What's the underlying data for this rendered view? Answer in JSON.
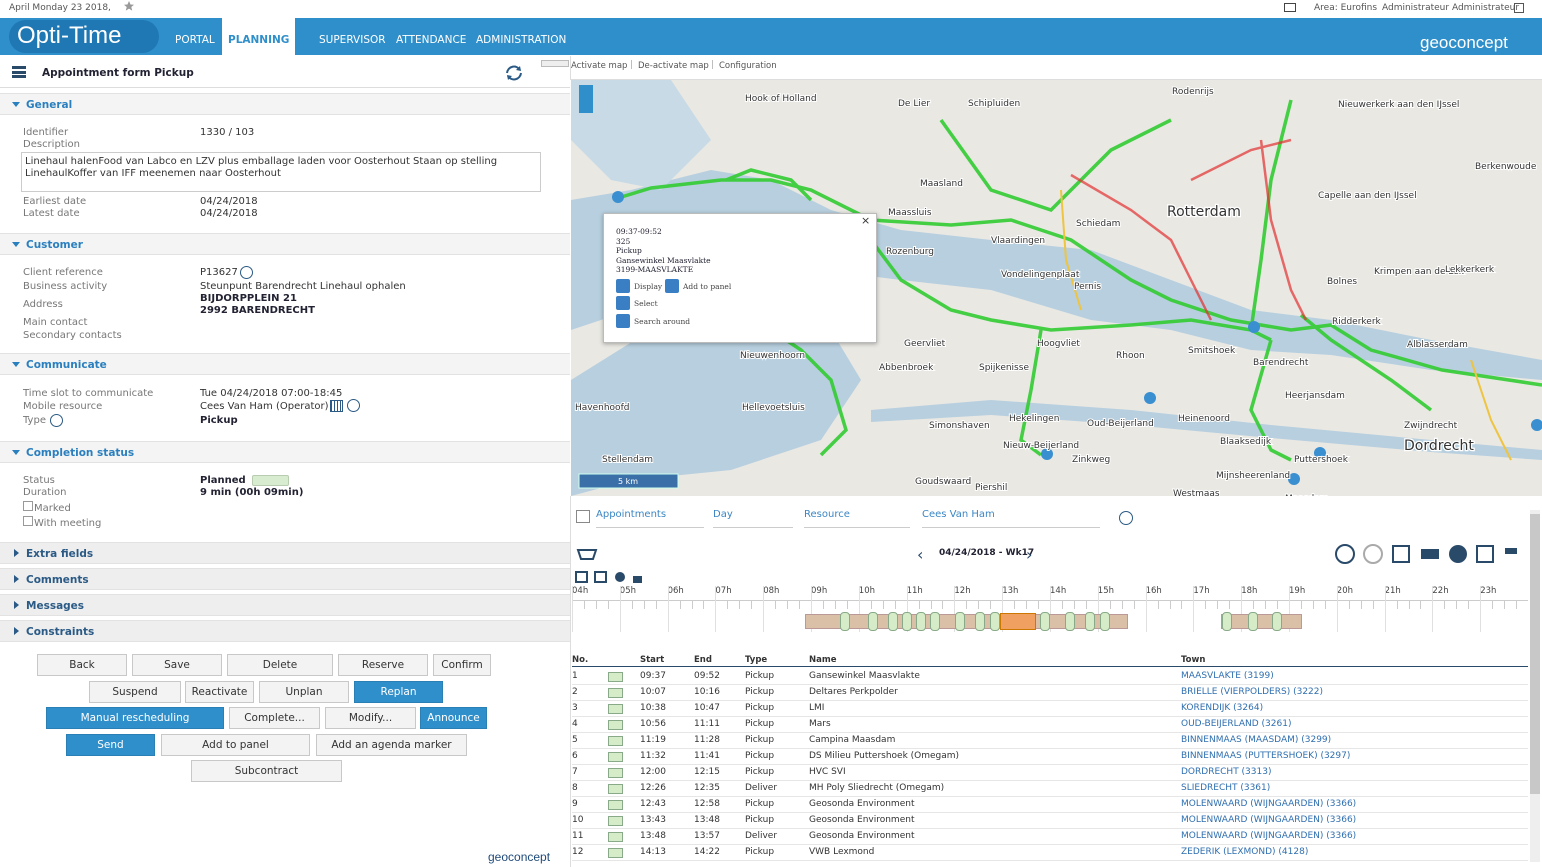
{
  "topbar": {
    "date": "April Monday 23 2018,",
    "area": "Area: Eurofins",
    "user": "Administrateur Administrateur"
  },
  "nav": {
    "logo": "Opti-Time",
    "tabs": [
      "PORTAL",
      "PLANNING",
      "SUPERVISOR",
      "ATTENDANCE",
      "ADMINISTRATION"
    ],
    "active_tab": 1,
    "brand": "geoconcept"
  },
  "form": {
    "title": "Appointment form  Pickup",
    "sections": [
      "General",
      "Customer",
      "Communicate",
      "Completion status",
      "Extra fields",
      "Comments",
      "Messages",
      "Constraints"
    ],
    "general": {
      "identifier_label": "Identifier",
      "identifier": "1330 / 103",
      "description_label": "Description",
      "description": "Linehaul halenFood van Labco en LZV plus emballage laden voor Oosterhout Staan op stelling\nLinehaulKoffer van IFF meenemen naar Oosterhout",
      "earliest_label": "Earliest date",
      "earliest": "04/24/2018",
      "latest_label": "Latest date",
      "latest": "04/24/2018"
    },
    "customer": {
      "client_ref_label": "Client reference",
      "client_ref": "P13627",
      "activity_label": "Business activity",
      "activity": "Steunpunt Barendrecht Linehaul ophalen",
      "address_label": "Address",
      "address_lines": [
        "BIJDORPPLEIN 21",
        "2992 BARENDRECHT"
      ],
      "main_contact_label": "Main contact",
      "secondary_label": "Secondary contacts"
    },
    "communicate": {
      "timeslot_label": "Time slot to communicate",
      "timeslot": "Tue 04/24/2018 07:00-18:45",
      "resource_label": "Mobile resource",
      "resource": "Cees Van Ham (Operator)",
      "type_label": "Type",
      "type": "Pickup"
    },
    "completion": {
      "status_label": "Status",
      "status": "Planned",
      "duration_label": "Duration",
      "duration": "9 min (00h 09min)",
      "marked": "Marked",
      "with_meeting": "With meeting"
    },
    "buttons": [
      [
        "Back",
        "Save",
        "Delete",
        "Reserve",
        "Confirm"
      ],
      [
        "Suspend",
        "Reactivate",
        "Unplan",
        "Replan"
      ],
      [
        "Manual rescheduling",
        "Complete...",
        "Modify...",
        "Announce"
      ],
      [
        "Send",
        "Add to panel",
        "Add an agenda marker"
      ],
      [
        "Subcontract"
      ]
    ],
    "footer": "geoconcept"
  },
  "map": {
    "links": [
      "Activate map",
      "De-activate map",
      "Configuration"
    ],
    "labels": [
      "Hook of Holland",
      "De Lier",
      "Schipluiden",
      "Rodenrijs",
      "Nieuwerkerk aan den IJssel",
      "Berkenwoude",
      "Maassluis",
      "Maasland",
      "Schiedam",
      "Rotterdam",
      "Vlaardingen",
      "Capelle aan den IJssel",
      "Rozenburg",
      "Vondelingenplaat",
      "Pernis",
      "Bolnes",
      "Krimpen aan de Lek",
      "Lekkerkerk",
      "Ridderkerk",
      "Alblasserdam",
      "Geervliet",
      "Hoogvliet",
      "Rhoon",
      "Smitshoek",
      "Barendrecht",
      "Abbenbroek",
      "Spijkenisse",
      "Nieuwenhoorn",
      "Hellevoetsluis",
      "Havenhoofd",
      "Heerjansdam",
      "Heinenoord",
      "Zwijndrecht",
      "Dordrecht",
      "Hekelingen",
      "Simonshaven",
      "Oud-Beijerland",
      "Nieuw-Beijerland",
      "Blaaksedijk",
      "Puttershoek",
      "Zinkweg",
      "Stellendam",
      "Mijnsheerenland",
      "Goudswaard",
      "Piershil",
      "Westmaas",
      "Maasdam"
    ],
    "scale": "5 km",
    "popup": {
      "lines": [
        "09:37-09:52",
        "325",
        "Pickup",
        "Gansewinkel Maasvlakte",
        "3199-MAASVLAKTE"
      ],
      "actions": [
        "Display",
        "Add to panel",
        "Select",
        "Search around"
      ]
    }
  },
  "planning": {
    "filters": [
      "Appointments",
      "Day",
      "Resource",
      "Cees Van Ham"
    ],
    "week": "04/24/2018 - Wk17",
    "hours": [
      "04h",
      "05h",
      "06h",
      "07h",
      "08h",
      "09h",
      "10h",
      "11h",
      "12h",
      "13h",
      "14h",
      "15h",
      "16h",
      "17h",
      "18h",
      "19h",
      "20h",
      "21h",
      "22h",
      "23h"
    ],
    "columns": [
      "No.",
      "Start",
      "End",
      "Type",
      "Name",
      "Town"
    ],
    "rows": [
      [
        1,
        "09:37",
        "09:52",
        "Pickup",
        "Gansewinkel Maasvlakte",
        "MAASVLAKTE (3199)"
      ],
      [
        2,
        "10:07",
        "10:16",
        "Pickup",
        "Deltares Perkpolder",
        "BRIELLE (VIERPOLDERS) (3222)"
      ],
      [
        3,
        "10:38",
        "10:47",
        "Pickup",
        "LMI",
        "KORENDIJK (3264)"
      ],
      [
        4,
        "10:56",
        "11:11",
        "Pickup",
        "Mars",
        "OUD-BEIJERLAND (3261)"
      ],
      [
        5,
        "11:19",
        "11:28",
        "Pickup",
        "Campina Maasdam",
        "BINNENMAAS (MAASDAM) (3299)"
      ],
      [
        6,
        "11:32",
        "11:41",
        "Pickup",
        "DS Milieu Puttershoek (Omegam)",
        "BINNENMAAS (PUTTERSHOEK) (3297)"
      ],
      [
        7,
        "12:00",
        "12:15",
        "Pickup",
        "HVC SVI",
        "DORDRECHT (3313)"
      ],
      [
        8,
        "12:26",
        "12:35",
        "Deliver",
        "MH Poly Sliedrecht (Omegam)",
        "SLIEDRECHT (3361)"
      ],
      [
        9,
        "12:43",
        "12:58",
        "Pickup",
        "Geosonda Environment",
        "MOLENWAARD (WIJNGAARDEN) (3366)"
      ],
      [
        10,
        "13:43",
        "13:48",
        "Pickup",
        "Geosonda Environment",
        "MOLENWAARD (WIJNGAARDEN) (3366)"
      ],
      [
        11,
        "13:48",
        "13:57",
        "Deliver",
        "Geosonda Environment",
        "MOLENWAARD (WIJNGAARDEN) (3366)"
      ],
      [
        12,
        "14:13",
        "14:22",
        "Pickup",
        "VWB Lexmond",
        "ZEDERIK (LEXMOND) (4128)"
      ]
    ]
  }
}
